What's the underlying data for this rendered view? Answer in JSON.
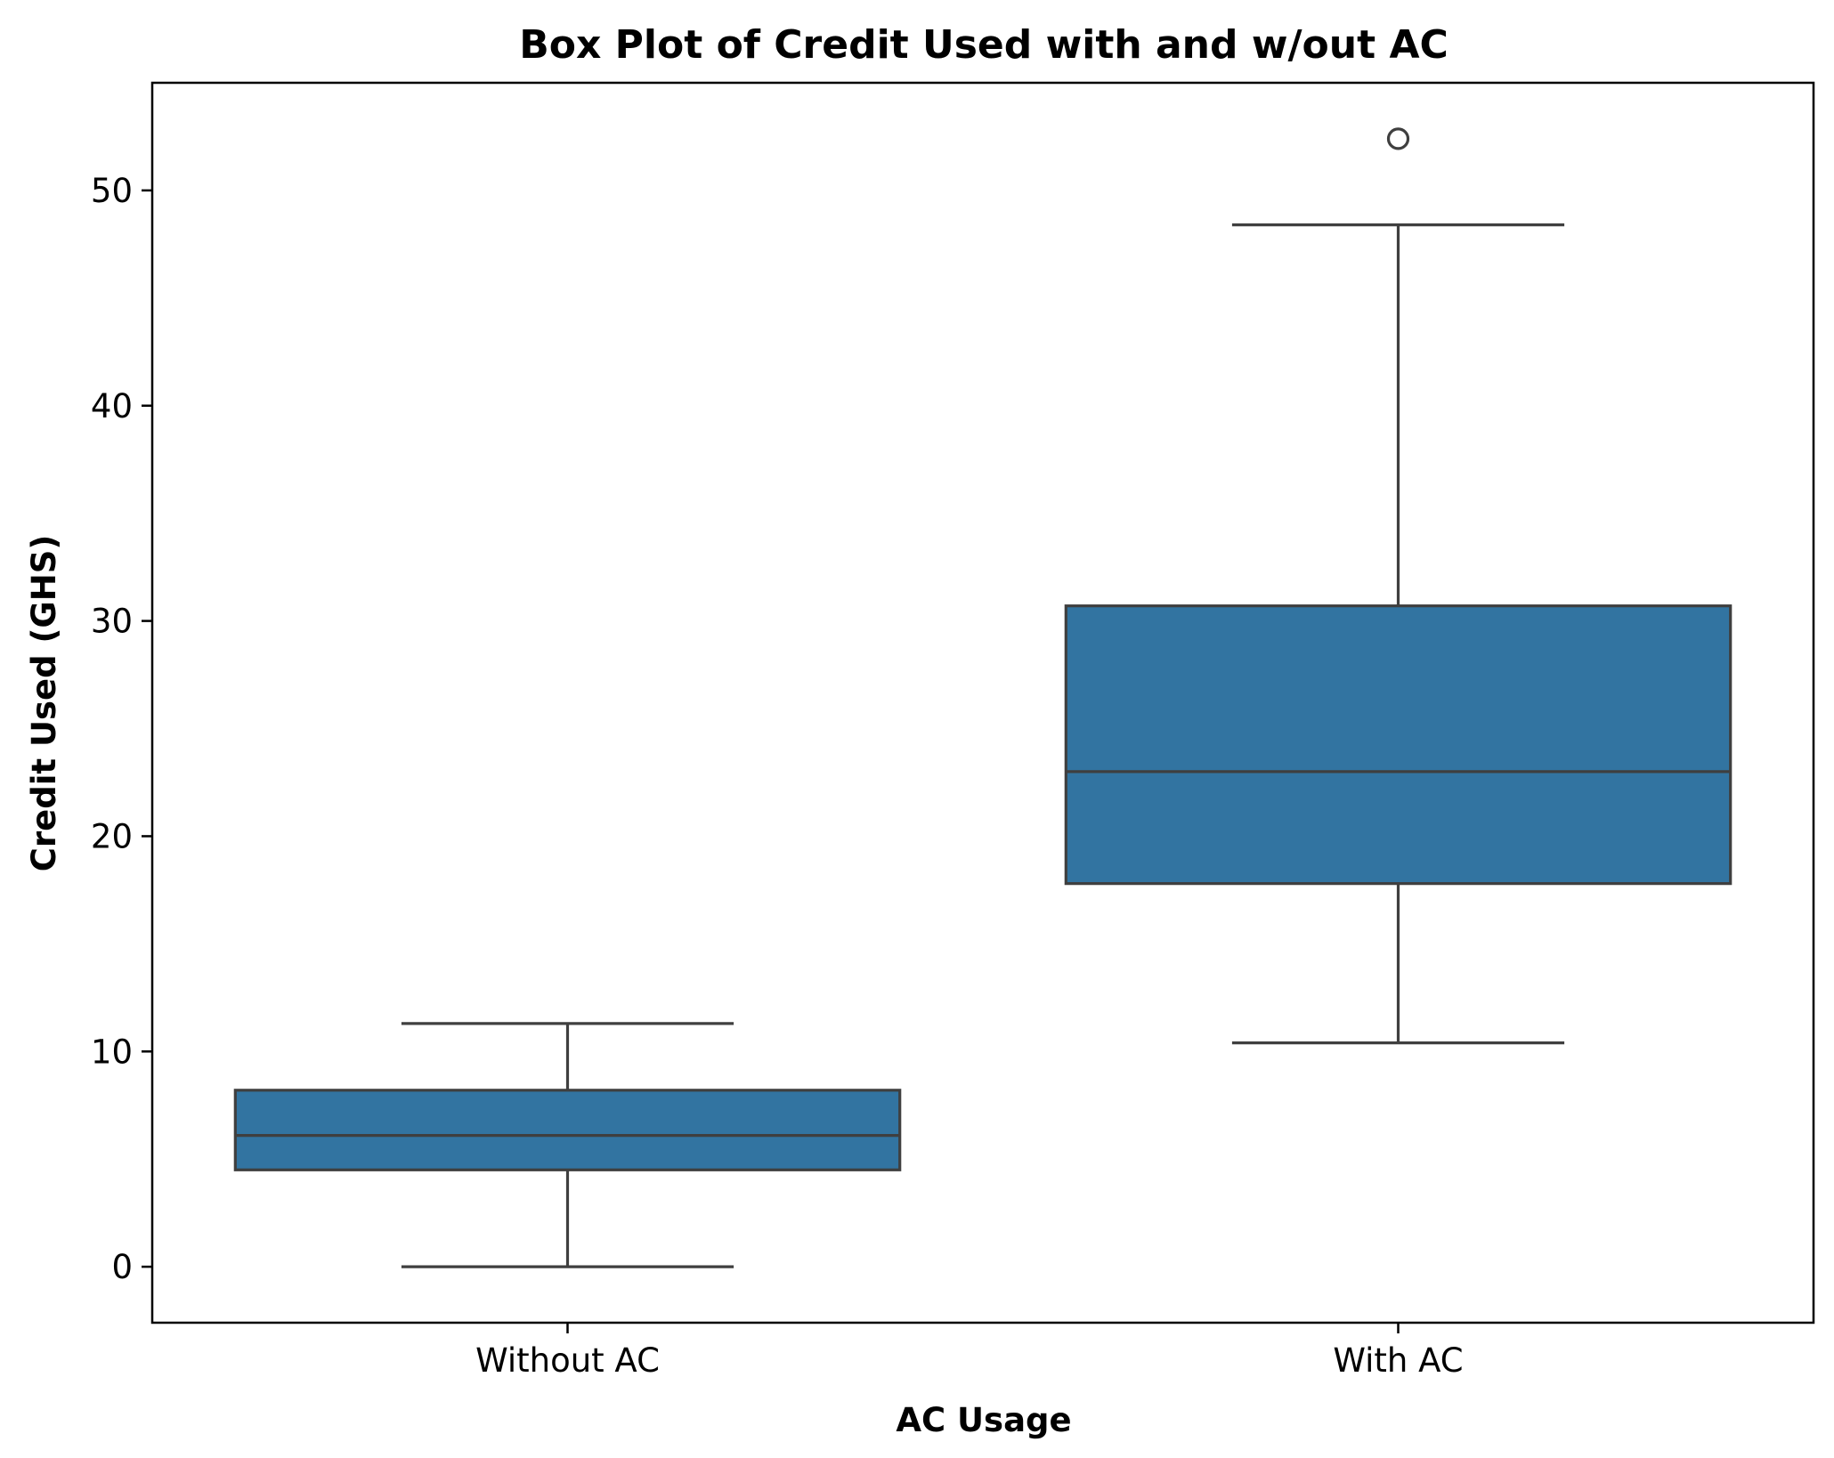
{
  "chart_data": {
    "type": "box",
    "title": "Box Plot of Credit Used with and w/out AC",
    "xlabel": "AC Usage",
    "ylabel": "Credit Used (GHS)",
    "categories": [
      "Without AC",
      "With AC"
    ],
    "ylim": [
      -2.6,
      55
    ],
    "yticks": [
      "0",
      "10",
      "20",
      "30",
      "40",
      "50"
    ],
    "grid": false,
    "boxes": [
      {
        "whisker_low": 0.0,
        "q1": 4.5,
        "median": 6.1,
        "q3": 8.2,
        "whisker_high": 11.3,
        "outliers": []
      },
      {
        "whisker_low": 10.4,
        "q1": 17.8,
        "median": 23.0,
        "q3": 30.7,
        "whisker_high": 48.4,
        "outliers": [
          52.4
        ]
      }
    ],
    "colors": {
      "box_fill": "#3274a1",
      "line": "#3f3f3f",
      "axis": "#000000"
    }
  }
}
